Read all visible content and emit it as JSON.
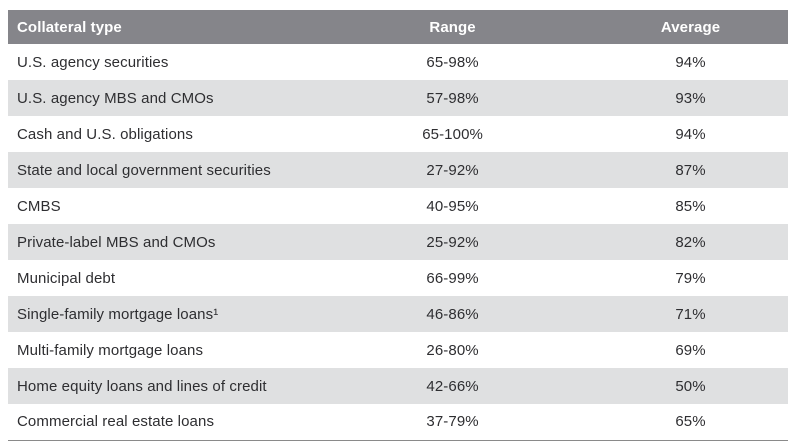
{
  "table": {
    "columns": [
      {
        "label": "Collateral type"
      },
      {
        "label": "Range"
      },
      {
        "label": "Average"
      }
    ],
    "rows": [
      {
        "collateral_type": "U.S. agency securities",
        "range": "65-98%",
        "average": "94%"
      },
      {
        "collateral_type": "U.S. agency MBS and CMOs",
        "range": "57-98%",
        "average": "93%"
      },
      {
        "collateral_type": "Cash and U.S. obligations",
        "range": "65-100%",
        "average": "94%"
      },
      {
        "collateral_type": "State and local government securities",
        "range": "27-92%",
        "average": "87%"
      },
      {
        "collateral_type": "CMBS",
        "range": "40-95%",
        "average": "85%"
      },
      {
        "collateral_type": "Private-label MBS and CMOs",
        "range": "25-92%",
        "average": "82%"
      },
      {
        "collateral_type": "Municipal debt",
        "range": "66-99%",
        "average": "79%"
      },
      {
        "collateral_type": "Single-family mortgage loans¹",
        "range": "46-86%",
        "average": "71%"
      },
      {
        "collateral_type": "Multi-family mortgage loans",
        "range": "26-80%",
        "average": "69%"
      },
      {
        "collateral_type": "Home equity loans and lines of credit",
        "range": "42-66%",
        "average": "50%"
      },
      {
        "collateral_type": "Commercial real estate loans",
        "range": "37-79%",
        "average": "65%"
      }
    ]
  },
  "colors": {
    "header_bg": "#85858a",
    "header_text": "#ffffff",
    "row_alt_bg": "#dfe0e1",
    "row_bg": "#ffffff",
    "body_text": "#2e2e31",
    "bottom_border": "#8a8a8a"
  }
}
